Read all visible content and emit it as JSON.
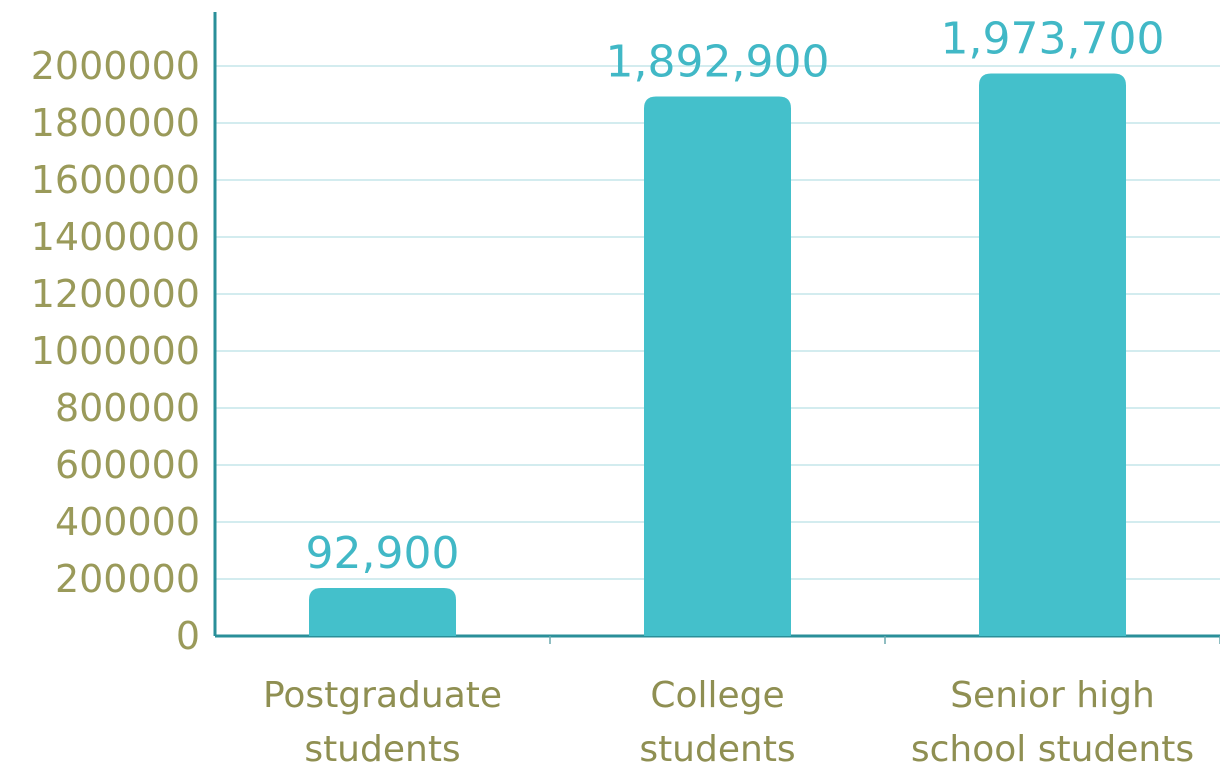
{
  "chart_data": {
    "type": "bar",
    "categories": [
      [
        "Postgraduate",
        "students"
      ],
      [
        "College",
        "students"
      ],
      [
        "Senior high",
        "school students"
      ]
    ],
    "values": [
      92900,
      1892900,
      1973700
    ],
    "data_labels": [
      "92,900",
      "1,892,900",
      "1,973,700"
    ],
    "y_ticks": [
      0,
      200000,
      400000,
      600000,
      800000,
      1000000,
      1200000,
      1400000,
      1600000,
      1800000,
      2000000
    ],
    "ylim": [
      0,
      2000000
    ],
    "grid": true,
    "title": "",
    "xlabel": "",
    "ylabel": "",
    "colors": {
      "bar": "#44c0cb",
      "data_label": "#41b8c6",
      "tick_label": "#9a9a5a",
      "grid": "#d3ecef",
      "axis": "#2a8f99"
    }
  }
}
